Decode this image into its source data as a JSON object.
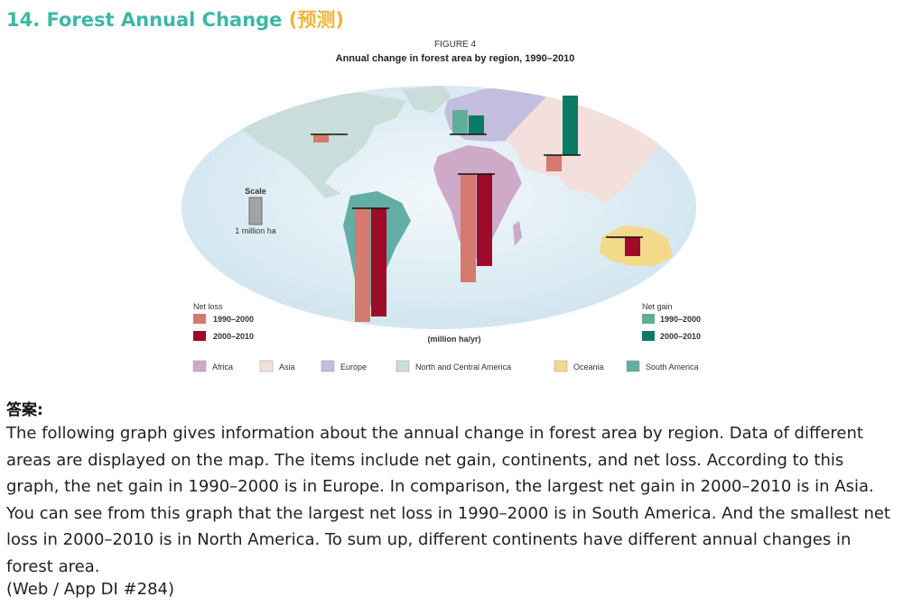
{
  "header": {
    "title": "14. Forest Annual Change",
    "title_zh": "(预测)"
  },
  "figure": {
    "label": "FIGURE 4",
    "title": "Annual change in forest area by region, 1990–2010"
  },
  "chart_data": {
    "type": "bar",
    "title": "Annual change in forest area by region, 1990–2010",
    "unit": "(million ha/yr)",
    "scale": {
      "label": "Scale",
      "value_label": "1 million ha",
      "value": 1
    },
    "categories": [
      "North and Central America",
      "Europe",
      "Asia",
      "South America",
      "Africa",
      "Oceania"
    ],
    "series": [
      {
        "name": "1990–2000",
        "values": [
          -0.3,
          0.9,
          -0.6,
          -4.2,
          -4.0,
          -0.04
        ]
      },
      {
        "name": "2000–2010",
        "values": [
          0.0,
          0.7,
          2.2,
          -4.0,
          -3.4,
          -0.7
        ]
      }
    ],
    "legend": {
      "net_loss_title": "Net loss",
      "net_gain_title": "Net gain",
      "periods": [
        "1990–2000",
        "2000–2010"
      ],
      "loss_colors": [
        "#d47a6e",
        "#9e0a2a"
      ],
      "gain_colors": [
        "#5fae9a",
        "#0b7a62"
      ],
      "regions": [
        {
          "name": "Africa",
          "color": "#cfa9c8"
        },
        {
          "name": "Asia",
          "color": "#f3dfdc"
        },
        {
          "name": "Europe",
          "color": "#c3bedd"
        },
        {
          "name": "North and Central America",
          "color": "#c9dedb"
        },
        {
          "name": "Oceania",
          "color": "#f3d98a"
        },
        {
          "name": "South America",
          "color": "#63ada5"
        }
      ]
    }
  },
  "answer": {
    "heading": "答案:",
    "body": "The following graph gives information about the annual change in forest area by region. Data of different areas are displayed on the map. The items include net gain, continents, and net loss. According to this graph, the net gain in 1990–2000 is in Europe. In comparison, the largest net gain in 2000–2010 is in Asia. You can see from this graph that the largest net loss in 1990–2000 is in South America. And the smallest net loss in 2000–2010 is in North America. To sum up, different continents have different annual changes in forest area.",
    "source": "(Web / App DI #284)"
  }
}
